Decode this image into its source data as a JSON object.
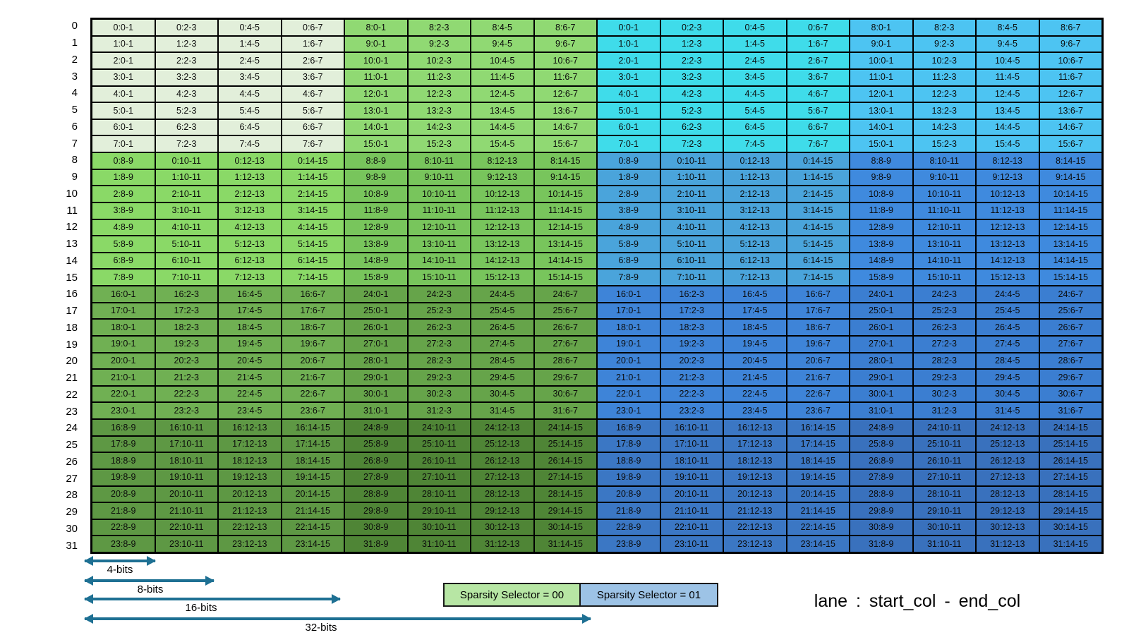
{
  "table": {
    "row_labels": [
      "0",
      "1",
      "2",
      "3",
      "4",
      "5",
      "6",
      "7",
      "8",
      "9",
      "10",
      "11",
      "12",
      "13",
      "14",
      "15",
      "16",
      "17",
      "18",
      "19",
      "20",
      "21",
      "22",
      "23",
      "24",
      "25",
      "26",
      "27",
      "28",
      "29",
      "30",
      "31"
    ],
    "quadrant_colors": [
      [
        "#e2efda",
        "#90d973",
        "#3fdcea",
        "#4dc4f2"
      ],
      [
        "#8ad967",
        "#78c55c",
        "#4aa4db",
        "#3f8ade"
      ],
      [
        "#70b053",
        "#66a44a",
        "#3e84d8",
        "#3b7ed1"
      ],
      [
        "#5e9844",
        "#4f8536",
        "#3b77c4",
        "#3971bd"
      ]
    ],
    "rows": [
      [
        "0:0-1",
        "0:2-3",
        "0:4-5",
        "0:6-7",
        "8:0-1",
        "8:2-3",
        "8:4-5",
        "8:6-7",
        "0:0-1",
        "0:2-3",
        "0:4-5",
        "0:6-7",
        "8:0-1",
        "8:2-3",
        "8:4-5",
        "8:6-7"
      ],
      [
        "1:0-1",
        "1:2-3",
        "1:4-5",
        "1:6-7",
        "9:0-1",
        "9:2-3",
        "9:4-5",
        "9:6-7",
        "1:0-1",
        "1:2-3",
        "1:4-5",
        "1:6-7",
        "9:0-1",
        "9:2-3",
        "9:4-5",
        "9:6-7"
      ],
      [
        "2:0-1",
        "2:2-3",
        "2:4-5",
        "2:6-7",
        "10:0-1",
        "10:2-3",
        "10:4-5",
        "10:6-7",
        "2:0-1",
        "2:2-3",
        "2:4-5",
        "2:6-7",
        "10:0-1",
        "10:2-3",
        "10:4-5",
        "10:6-7"
      ],
      [
        "3:0-1",
        "3:2-3",
        "3:4-5",
        "3:6-7",
        "11:0-1",
        "11:2-3",
        "11:4-5",
        "11:6-7",
        "3:0-1",
        "3:2-3",
        "3:4-5",
        "3:6-7",
        "11:0-1",
        "11:2-3",
        "11:4-5",
        "11:6-7"
      ],
      [
        "4:0-1",
        "4:2-3",
        "4:4-5",
        "4:6-7",
        "12:0-1",
        "12:2-3",
        "12:4-5",
        "12:6-7",
        "4:0-1",
        "4:2-3",
        "4:4-5",
        "4:6-7",
        "12:0-1",
        "12:2-3",
        "12:4-5",
        "12:6-7"
      ],
      [
        "5:0-1",
        "5:2-3",
        "5:4-5",
        "5:6-7",
        "13:0-1",
        "13:2-3",
        "13:4-5",
        "13:6-7",
        "5:0-1",
        "5:2-3",
        "5:4-5",
        "5:6-7",
        "13:0-1",
        "13:2-3",
        "13:4-5",
        "13:6-7"
      ],
      [
        "6:0-1",
        "6:2-3",
        "6:4-5",
        "6:6-7",
        "14:0-1",
        "14:2-3",
        "14:4-5",
        "14:6-7",
        "6:0-1",
        "6:2-3",
        "6:4-5",
        "6:6-7",
        "14:0-1",
        "14:2-3",
        "14:4-5",
        "14:6-7"
      ],
      [
        "7:0-1",
        "7:2-3",
        "7:4-5",
        "7:6-7",
        "15:0-1",
        "15:2-3",
        "15:4-5",
        "15:6-7",
        "7:0-1",
        "7:2-3",
        "7:4-5",
        "7:6-7",
        "15:0-1",
        "15:2-3",
        "15:4-5",
        "15:6-7"
      ],
      [
        "0:8-9",
        "0:10-11",
        "0:12-13",
        "0:14-15",
        "8:8-9",
        "8:10-11",
        "8:12-13",
        "8:14-15",
        "0:8-9",
        "0:10-11",
        "0:12-13",
        "0:14-15",
        "8:8-9",
        "8:10-11",
        "8:12-13",
        "8:14-15"
      ],
      [
        "1:8-9",
        "1:10-11",
        "1:12-13",
        "1:14-15",
        "9:8-9",
        "9:10-11",
        "9:12-13",
        "9:14-15",
        "1:8-9",
        "1:10-11",
        "1:12-13",
        "1:14-15",
        "9:8-9",
        "9:10-11",
        "9:12-13",
        "9:14-15"
      ],
      [
        "2:8-9",
        "2:10-11",
        "2:12-13",
        "2:14-15",
        "10:8-9",
        "10:10-11",
        "10:12-13",
        "10:14-15",
        "2:8-9",
        "2:10-11",
        "2:12-13",
        "2:14-15",
        "10:8-9",
        "10:10-11",
        "10:12-13",
        "10:14-15"
      ],
      [
        "3:8-9",
        "3:10-11",
        "3:12-13",
        "3:14-15",
        "11:8-9",
        "11:10-11",
        "11:12-13",
        "11:14-15",
        "3:8-9",
        "3:10-11",
        "3:12-13",
        "3:14-15",
        "11:8-9",
        "11:10-11",
        "11:12-13",
        "11:14-15"
      ],
      [
        "4:8-9",
        "4:10-11",
        "4:12-13",
        "4:14-15",
        "12:8-9",
        "12:10-11",
        "12:12-13",
        "12:14-15",
        "4:8-9",
        "4:10-11",
        "4:12-13",
        "4:14-15",
        "12:8-9",
        "12:10-11",
        "12:12-13",
        "12:14-15"
      ],
      [
        "5:8-9",
        "5:10-11",
        "5:12-13",
        "5:14-15",
        "13:8-9",
        "13:10-11",
        "13:12-13",
        "13:14-15",
        "5:8-9",
        "5:10-11",
        "5:12-13",
        "5:14-15",
        "13:8-9",
        "13:10-11",
        "13:12-13",
        "13:14-15"
      ],
      [
        "6:8-9",
        "6:10-11",
        "6:12-13",
        "6:14-15",
        "14:8-9",
        "14:10-11",
        "14:12-13",
        "14:14-15",
        "6:8-9",
        "6:10-11",
        "6:12-13",
        "6:14-15",
        "14:8-9",
        "14:10-11",
        "14:12-13",
        "14:14-15"
      ],
      [
        "7:8-9",
        "7:10-11",
        "7:12-13",
        "7:14-15",
        "15:8-9",
        "15:10-11",
        "15:12-13",
        "15:14-15",
        "7:8-9",
        "7:10-11",
        "7:12-13",
        "7:14-15",
        "15:8-9",
        "15:10-11",
        "15:12-13",
        "15:14-15"
      ],
      [
        "16:0-1",
        "16:2-3",
        "16:4-5",
        "16:6-7",
        "24:0-1",
        "24:2-3",
        "24:4-5",
        "24:6-7",
        "16:0-1",
        "16:2-3",
        "16:4-5",
        "16:6-7",
        "24:0-1",
        "24:2-3",
        "24:4-5",
        "24:6-7"
      ],
      [
        "17:0-1",
        "17:2-3",
        "17:4-5",
        "17:6-7",
        "25:0-1",
        "25:2-3",
        "25:4-5",
        "25:6-7",
        "17:0-1",
        "17:2-3",
        "17:4-5",
        "17:6-7",
        "25:0-1",
        "25:2-3",
        "25:4-5",
        "25:6-7"
      ],
      [
        "18:0-1",
        "18:2-3",
        "18:4-5",
        "18:6-7",
        "26:0-1",
        "26:2-3",
        "26:4-5",
        "26:6-7",
        "18:0-1",
        "18:2-3",
        "18:4-5",
        "18:6-7",
        "26:0-1",
        "26:2-3",
        "26:4-5",
        "26:6-7"
      ],
      [
        "19:0-1",
        "19:2-3",
        "19:4-5",
        "19:6-7",
        "27:0-1",
        "27:2-3",
        "27:4-5",
        "27:6-7",
        "19:0-1",
        "19:2-3",
        "19:4-5",
        "19:6-7",
        "27:0-1",
        "27:2-3",
        "27:4-5",
        "27:6-7"
      ],
      [
        "20:0-1",
        "20:2-3",
        "20:4-5",
        "20:6-7",
        "28:0-1",
        "28:2-3",
        "28:4-5",
        "28:6-7",
        "20:0-1",
        "20:2-3",
        "20:4-5",
        "20:6-7",
        "28:0-1",
        "28:2-3",
        "28:4-5",
        "28:6-7"
      ],
      [
        "21:0-1",
        "21:2-3",
        "21:4-5",
        "21:6-7",
        "29:0-1",
        "29:2-3",
        "29:4-5",
        "29:6-7",
        "21:0-1",
        "21:2-3",
        "21:4-5",
        "21:6-7",
        "29:0-1",
        "29:2-3",
        "29:4-5",
        "29:6-7"
      ],
      [
        "22:0-1",
        "22:2-3",
        "22:4-5",
        "22:6-7",
        "30:0-1",
        "30:2-3",
        "30:4-5",
        "30:6-7",
        "22:0-1",
        "22:2-3",
        "22:4-5",
        "22:6-7",
        "30:0-1",
        "30:2-3",
        "30:4-5",
        "30:6-7"
      ],
      [
        "23:0-1",
        "23:2-3",
        "23:4-5",
        "23:6-7",
        "31:0-1",
        "31:2-3",
        "31:4-5",
        "31:6-7",
        "23:0-1",
        "23:2-3",
        "23:4-5",
        "23:6-7",
        "31:0-1",
        "31:2-3",
        "31:4-5",
        "31:6-7"
      ],
      [
        "16:8-9",
        "16:10-11",
        "16:12-13",
        "16:14-15",
        "24:8-9",
        "24:10-11",
        "24:12-13",
        "24:14-15",
        "16:8-9",
        "16:10-11",
        "16:12-13",
        "16:14-15",
        "24:8-9",
        "24:10-11",
        "24:12-13",
        "24:14-15"
      ],
      [
        "17:8-9",
        "17:10-11",
        "17:12-13",
        "17:14-15",
        "25:8-9",
        "25:10-11",
        "25:12-13",
        "25:14-15",
        "17:8-9",
        "17:10-11",
        "17:12-13",
        "17:14-15",
        "25:8-9",
        "25:10-11",
        "25:12-13",
        "25:14-15"
      ],
      [
        "18:8-9",
        "18:10-11",
        "18:12-13",
        "18:14-15",
        "26:8-9",
        "26:10-11",
        "26:12-13",
        "26:14-15",
        "18:8-9",
        "18:10-11",
        "18:12-13",
        "18:14-15",
        "26:8-9",
        "26:10-11",
        "26:12-13",
        "26:14-15"
      ],
      [
        "19:8-9",
        "19:10-11",
        "19:12-13",
        "19:14-15",
        "27:8-9",
        "27:10-11",
        "27:12-13",
        "27:14-15",
        "19:8-9",
        "19:10-11",
        "19:12-13",
        "19:14-15",
        "27:8-9",
        "27:10-11",
        "27:12-13",
        "27:14-15"
      ],
      [
        "20:8-9",
        "20:10-11",
        "20:12-13",
        "20:14-15",
        "28:8-9",
        "28:10-11",
        "28:12-13",
        "28:14-15",
        "20:8-9",
        "20:10-11",
        "20:12-13",
        "20:14-15",
        "28:8-9",
        "28:10-11",
        "28:12-13",
        "28:14-15"
      ],
      [
        "21:8-9",
        "21:10-11",
        "21:12-13",
        "21:14-15",
        "29:8-9",
        "29:10-11",
        "29:12-13",
        "29:14-15",
        "21:8-9",
        "21:10-11",
        "21:12-13",
        "21:14-15",
        "29:8-9",
        "29:10-11",
        "29:12-13",
        "29:14-15"
      ],
      [
        "22:8-9",
        "22:10-11",
        "22:12-13",
        "22:14-15",
        "30:8-9",
        "30:10-11",
        "30:12-13",
        "30:14-15",
        "22:8-9",
        "22:10-11",
        "22:12-13",
        "22:14-15",
        "30:8-9",
        "30:10-11",
        "30:12-13",
        "30:14-15"
      ],
      [
        "23:8-9",
        "23:10-11",
        "23:12-13",
        "23:14-15",
        "31:8-9",
        "31:10-11",
        "31:12-13",
        "31:14-15",
        "23:8-9",
        "23:10-11",
        "23:12-13",
        "23:14-15",
        "31:8-9",
        "31:10-11",
        "31:12-13",
        "31:14-15"
      ]
    ]
  },
  "annotations": {
    "bit_arrows": [
      {
        "label": "4-bits"
      },
      {
        "label": "8-bits"
      },
      {
        "label": "16-bits"
      },
      {
        "label": "32-bits"
      }
    ],
    "formula": "lane : start_col - end_col"
  },
  "legend": {
    "items": [
      {
        "label": "Sparsity Selector = 00",
        "color": "#b7e6a4"
      },
      {
        "label": "Sparsity Selector = 01",
        "color": "#9dc3e6"
      }
    ]
  },
  "colors": {
    "arrow": "#1e7093",
    "border": "#000000",
    "background": "#ffffff"
  }
}
